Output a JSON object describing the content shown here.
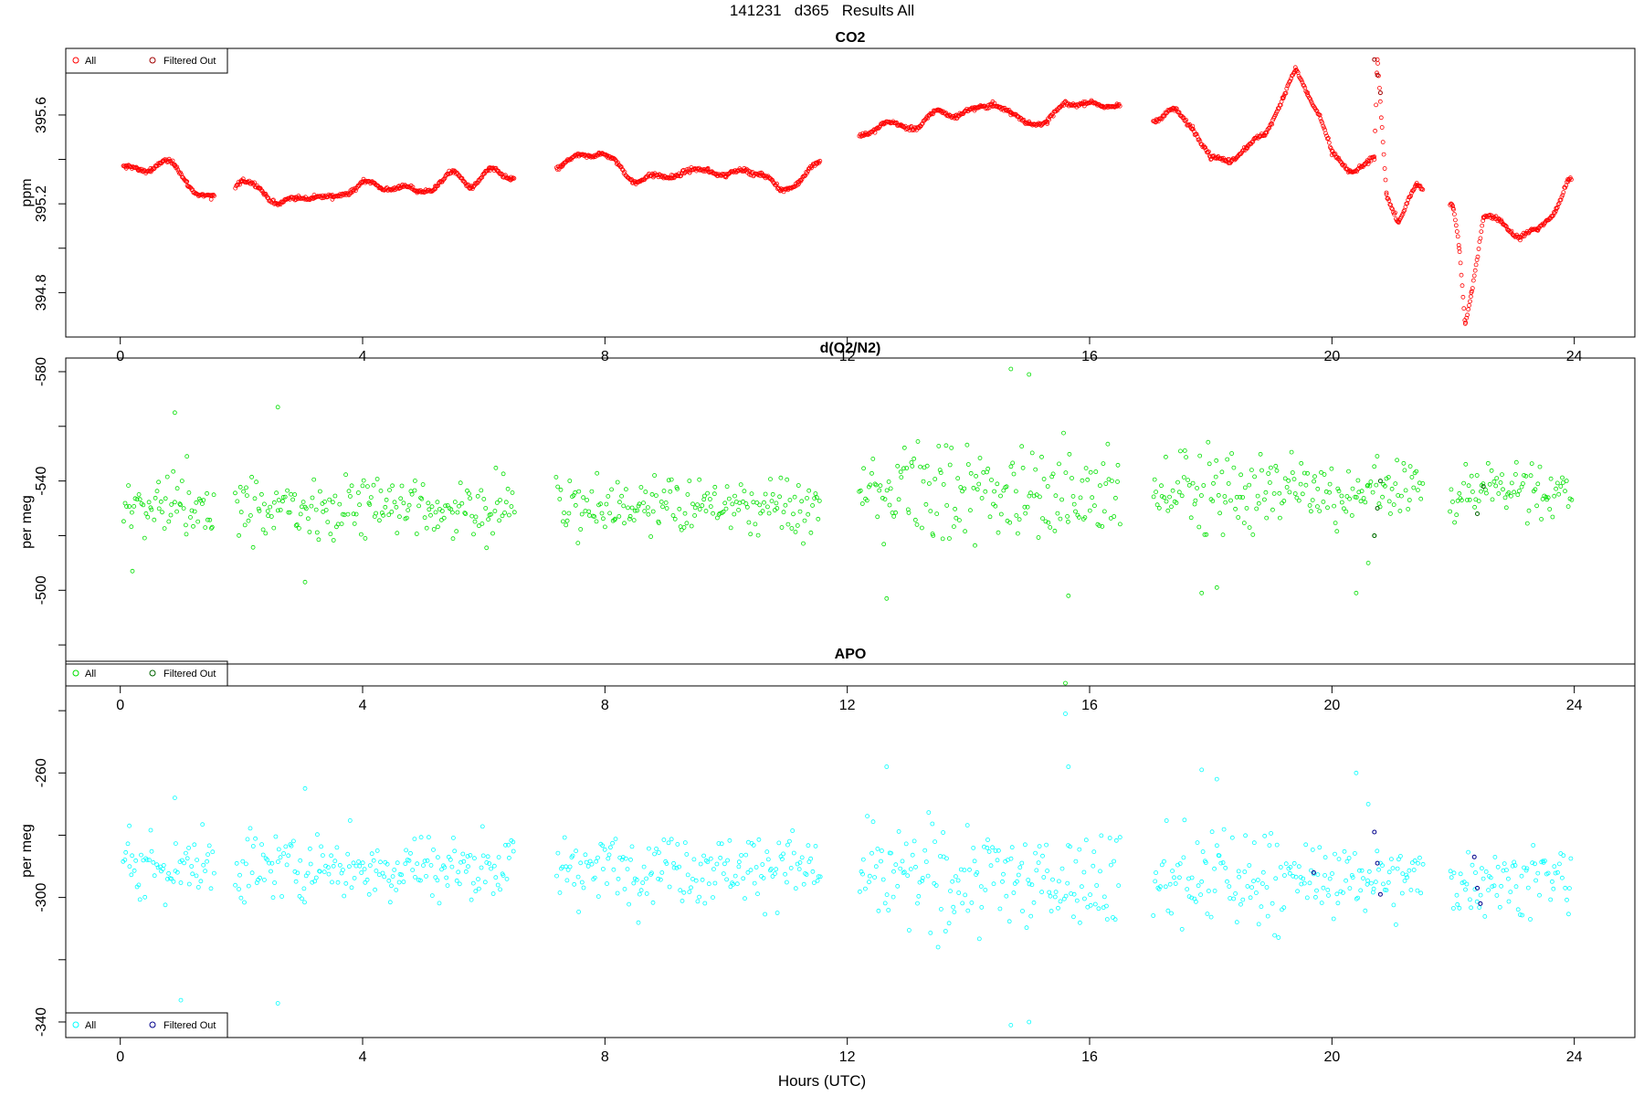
{
  "page_title": "141231   d365   Results All",
  "x_axis_label": "Hours (UTC)",
  "chart_data": [
    {
      "type": "scatter",
      "title": "CO2",
      "ylabel": "ppm",
      "xlim": [
        -0.9,
        25.0
      ],
      "ylim": [
        394.6,
        395.9
      ],
      "xticks": [
        0,
        4,
        8,
        12,
        16,
        20,
        24
      ],
      "yticks": [
        394.8,
        395.2,
        395.6
      ],
      "minor_yticks": [
        395.0,
        395.4
      ],
      "grid": false,
      "legend_position": "top-left",
      "legend": [
        "All",
        "Filtered Out"
      ],
      "colors": {
        "All": "#ff0000",
        "Filtered Out": "#a00000"
      },
      "segments": [
        [
          0.05,
          1.55
        ],
        [
          1.9,
          6.5
        ],
        [
          7.2,
          11.55
        ],
        [
          12.2,
          16.5
        ],
        [
          17.05,
          21.5
        ],
        [
          21.95,
          23.95
        ]
      ],
      "series": [
        {
          "name": "All",
          "x": [
            0.1,
            0.3,
            0.5,
            0.7,
            0.9,
            1.1,
            1.3,
            1.5,
            2.0,
            2.3,
            2.6,
            2.9,
            3.2,
            3.5,
            3.8,
            4.0,
            4.3,
            4.6,
            4.9,
            5.2,
            5.5,
            5.8,
            6.1,
            6.45,
            7.3,
            7.6,
            7.9,
            8.2,
            8.5,
            8.8,
            9.1,
            9.4,
            9.7,
            10.0,
            10.3,
            10.6,
            10.9,
            11.2,
            11.5,
            12.3,
            12.6,
            12.9,
            13.2,
            13.5,
            13.8,
            14.1,
            14.4,
            14.7,
            15.0,
            15.3,
            15.6,
            15.9,
            16.2,
            16.45,
            17.1,
            17.4,
            17.7,
            18.0,
            18.3,
            18.6,
            18.9,
            19.2,
            19.4,
            19.6,
            19.8,
            20.0,
            20.3,
            20.6,
            20.7,
            20.75,
            20.9,
            21.1,
            21.4,
            22.0,
            22.1,
            22.2,
            22.3,
            22.5,
            22.8,
            23.1,
            23.4,
            23.7,
            23.9
          ],
          "y": [
            395.36,
            395.35,
            395.36,
            395.39,
            395.37,
            395.3,
            395.24,
            395.22,
            395.3,
            395.27,
            395.2,
            395.22,
            395.24,
            395.22,
            395.26,
            395.3,
            395.27,
            395.28,
            395.25,
            395.28,
            395.34,
            395.28,
            395.35,
            395.32,
            395.37,
            395.42,
            395.43,
            395.38,
            395.3,
            395.32,
            395.33,
            395.34,
            395.36,
            395.32,
            395.36,
            395.33,
            395.26,
            395.3,
            395.38,
            395.52,
            395.56,
            395.55,
            395.55,
            395.62,
            395.6,
            395.62,
            395.66,
            395.6,
            395.57,
            395.56,
            395.66,
            395.65,
            395.64,
            395.65,
            395.58,
            395.62,
            395.55,
            395.4,
            395.4,
            395.45,
            395.52,
            395.68,
            395.8,
            395.7,
            395.6,
            395.42,
            395.35,
            395.38,
            395.4,
            395.85,
            395.25,
            395.12,
            395.28,
            395.18,
            395.0,
            394.66,
            394.8,
            395.14,
            395.12,
            395.05,
            395.08,
            395.18,
            395.3
          ]
        },
        {
          "name": "Filtered Out",
          "x": [
            20.7,
            20.75,
            20.8
          ],
          "y": [
            395.85,
            395.78,
            395.7
          ]
        }
      ]
    },
    {
      "type": "scatter",
      "title": "d(O2/N2)",
      "ylabel": "per meg",
      "xlim": [
        -0.9,
        25.0
      ],
      "ylim": [
        -585,
        -465
      ],
      "y_reversed": true,
      "xticks": [
        0,
        4,
        8,
        12,
        16,
        20,
        24
      ],
      "yticks": [
        -500,
        -540,
        -580
      ],
      "minor_yticks": [
        -480,
        -520,
        -560
      ],
      "grid": false,
      "legend_position": "bottom-left",
      "legend": [
        "All",
        "Filtered Out"
      ],
      "colors": {
        "All": "#00e000",
        "Filtered Out": "#006400"
      },
      "segments": [
        [
          0.05,
          1.55
        ],
        [
          1.9,
          6.5
        ],
        [
          7.2,
          11.55
        ],
        [
          12.2,
          16.5
        ],
        [
          17.05,
          21.5
        ],
        [
          21.95,
          23.95
        ]
      ],
      "series": [
        {
          "name": "All",
          "x": [
            0.2,
            0.9,
            1.1,
            2.6,
            3.05,
            12.65,
            14.7,
            15.0,
            15.6,
            15.65,
            17.85,
            18.1,
            20.4,
            20.6,
            20.7
          ],
          "y": [
            -507,
            -565,
            -549,
            -567,
            -503,
            -497,
            -581,
            -579,
            -466,
            -498,
            -499,
            -501,
            -499,
            -510,
            -520
          ]
        },
        {
          "name": "Filtered Out",
          "x": [
            20.7,
            20.75,
            20.8,
            22.4,
            22.5
          ],
          "y": [
            -520,
            -530,
            -540,
            -528,
            -538
          ]
        }
      ]
    },
    {
      "type": "scatter",
      "title": "APO",
      "ylabel": "per meg",
      "xlim": [
        -0.9,
        25.0
      ],
      "ylim": [
        -345,
        -225
      ],
      "xticks": [
        0,
        4,
        8,
        12,
        16,
        20,
        24
      ],
      "yticks": [
        -260,
        -300,
        -340
      ],
      "minor_yticks": [
        -240,
        -280,
        -320
      ],
      "grid": false,
      "legend_position": "bottom-left",
      "legend": [
        "All",
        "Filtered Out"
      ],
      "colors": {
        "All": "#00ffff",
        "Filtered Out": "#00008b"
      },
      "segments": [
        [
          0.05,
          1.55
        ],
        [
          1.9,
          6.5
        ],
        [
          7.2,
          11.55
        ],
        [
          12.2,
          16.5
        ],
        [
          17.05,
          21.5
        ],
        [
          21.95,
          23.95
        ]
      ],
      "series": [
        {
          "name": "All",
          "x": [
            0.15,
            0.9,
            1.0,
            2.6,
            3.05,
            12.65,
            14.7,
            15.0,
            15.6,
            15.65,
            17.85,
            18.1,
            20.4,
            20.6
          ],
          "y": [
            -277,
            -268,
            -333,
            -334,
            -265,
            -258,
            -341,
            -340,
            -241,
            -258,
            -259,
            -262,
            -260,
            -270
          ]
        },
        {
          "name": "Filtered Out",
          "x": [
            20.7,
            20.75,
            20.8,
            22.35,
            22.4,
            22.45,
            19.7
          ],
          "y": [
            -279,
            -289,
            -299,
            -287,
            -297,
            -302,
            -292
          ]
        }
      ]
    }
  ]
}
